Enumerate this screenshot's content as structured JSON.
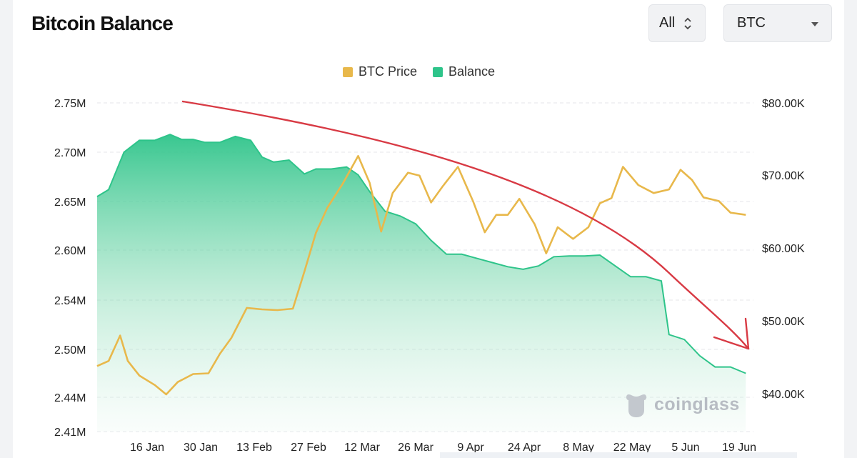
{
  "title": "Bitcoin Balance",
  "controls": {
    "range_label": "All",
    "asset_label": "BTC"
  },
  "legend": [
    {
      "label": "BTC Price",
      "color": "#e8b84b"
    },
    {
      "label": "Balance",
      "color": "#2ec48a"
    }
  ],
  "watermark": "coinglass",
  "chart_data": {
    "type": "line",
    "title": "Bitcoin Balance",
    "x_ticks": [
      "16 Jan",
      "30 Jan",
      "13 Feb",
      "27 Feb",
      "12 Mar",
      "26 Mar",
      "9 Apr",
      "24 Apr",
      "8 May",
      "22 May",
      "5 Jun",
      "19 Jun"
    ],
    "y_left_ticks": [
      "2.41M",
      "2.44M",
      "2.50M",
      "2.54M",
      "2.60M",
      "2.65M",
      "2.70M",
      "2.75M"
    ],
    "y_right_ticks": [
      "$40.00K",
      "$50.00K",
      "$60.00K",
      "$70.00K",
      "$80.00K"
    ],
    "y_left_range": [
      2.41,
      2.75
    ],
    "y_right_range": [
      38,
      80
    ],
    "grid": true,
    "legend_position": "top-center",
    "series": [
      {
        "name": "Balance",
        "axis": "left",
        "unit": "M BTC",
        "color": "#2ec48a",
        "x": [
          "2024-01-05",
          "2024-01-08",
          "2024-01-12",
          "2024-01-16",
          "2024-01-20",
          "2024-01-24",
          "2024-01-27",
          "2024-01-30",
          "2024-02-02",
          "2024-02-06",
          "2024-02-10",
          "2024-02-14",
          "2024-02-17",
          "2024-02-20",
          "2024-02-24",
          "2024-02-28",
          "2024-03-02",
          "2024-03-06",
          "2024-03-10",
          "2024-03-13",
          "2024-03-16",
          "2024-03-20",
          "2024-03-24",
          "2024-03-28",
          "2024-04-01",
          "2024-04-05",
          "2024-04-09",
          "2024-04-13",
          "2024-04-17",
          "2024-04-21",
          "2024-04-25",
          "2024-04-29",
          "2024-05-03",
          "2024-05-07",
          "2024-05-11",
          "2024-05-15",
          "2024-05-19",
          "2024-05-23",
          "2024-05-27",
          "2024-05-31",
          "2024-06-02",
          "2024-06-06",
          "2024-06-10",
          "2024-06-14",
          "2024-06-18",
          "2024-06-22"
        ],
        "values": [
          2.655,
          2.662,
          2.7,
          2.712,
          2.712,
          2.718,
          2.713,
          2.713,
          2.71,
          2.71,
          2.716,
          2.712,
          2.695,
          2.69,
          2.692,
          2.678,
          2.683,
          2.683,
          2.685,
          2.677,
          2.66,
          2.64,
          2.635,
          2.627,
          2.61,
          2.595,
          2.595,
          2.59,
          2.585,
          2.58,
          2.577,
          2.581,
          2.592,
          2.593,
          2.593,
          2.594,
          2.581,
          2.568,
          2.568,
          2.563,
          2.512,
          2.508,
          2.492,
          2.478,
          2.478,
          2.47
        ]
      },
      {
        "name": "BTC Price",
        "axis": "right",
        "unit": "USD thousands",
        "color": "#e8b84b",
        "x": [
          "2024-01-05",
          "2024-01-08",
          "2024-01-11",
          "2024-01-13",
          "2024-01-16",
          "2024-01-20",
          "2024-01-23",
          "2024-01-26",
          "2024-01-30",
          "2024-02-03",
          "2024-02-06",
          "2024-02-09",
          "2024-02-13",
          "2024-02-17",
          "2024-02-21",
          "2024-02-25",
          "2024-02-28",
          "2024-03-02",
          "2024-03-05",
          "2024-03-09",
          "2024-03-13",
          "2024-03-16",
          "2024-03-19",
          "2024-03-22",
          "2024-03-26",
          "2024-03-29",
          "2024-04-01",
          "2024-04-04",
          "2024-04-08",
          "2024-04-12",
          "2024-04-15",
          "2024-04-18",
          "2024-04-21",
          "2024-04-24",
          "2024-04-28",
          "2024-05-01",
          "2024-05-04",
          "2024-05-08",
          "2024-05-12",
          "2024-05-15",
          "2024-05-18",
          "2024-05-21",
          "2024-05-25",
          "2024-05-29",
          "2024-06-02",
          "2024-06-05",
          "2024-06-08",
          "2024-06-11",
          "2024-06-15",
          "2024-06-18",
          "2024-06-22"
        ],
        "values": [
          43.8,
          44.5,
          48.0,
          44.5,
          42.5,
          41.2,
          39.9,
          41.6,
          42.7,
          42.8,
          45.5,
          47.7,
          51.8,
          51.6,
          51.5,
          51.7,
          56.8,
          62.1,
          65.6,
          68.9,
          72.7,
          69.0,
          62.3,
          67.6,
          70.4,
          70.0,
          66.3,
          68.5,
          71.2,
          66.4,
          62.2,
          64.6,
          64.6,
          66.8,
          63.3,
          59.3,
          62.9,
          61.3,
          62.9,
          66.2,
          66.9,
          71.2,
          68.7,
          67.6,
          68.1,
          70.8,
          69.4,
          67.0,
          66.5,
          64.9,
          64.6
        ]
      }
    ]
  }
}
